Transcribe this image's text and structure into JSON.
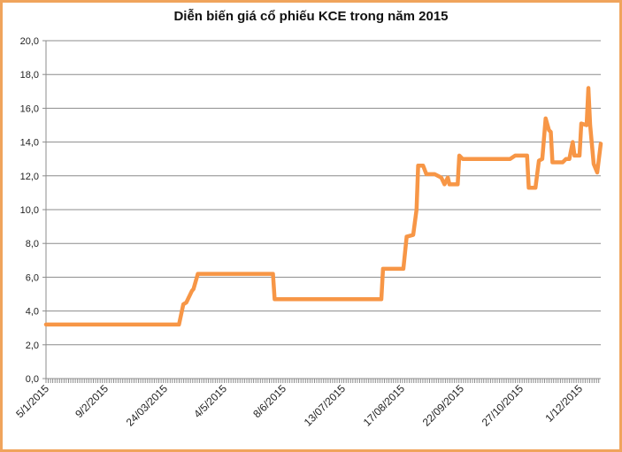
{
  "chart_data": {
    "type": "line",
    "title": "Diễn biến giá cổ phiếu KCE trong năm 2015",
    "xlabel": "",
    "ylabel": "",
    "ylim": [
      0,
      20
    ],
    "yticks": [
      "0,0",
      "2,0",
      "4,0",
      "6,0",
      "8,0",
      "10,0",
      "12,0",
      "14,0",
      "16,0",
      "18,0",
      "20,0"
    ],
    "xtick_labels": [
      "5/1/2015",
      "9/2/2015",
      "24/03/2015",
      "4/5/2015",
      "8/6/2015",
      "13/07/2015",
      "17/08/2015",
      "22/09/2015",
      "27/10/2015",
      "1/12/2015"
    ],
    "xtick_dates": [
      "2015-01-05",
      "2015-02-09",
      "2015-03-24",
      "2015-05-04",
      "2015-06-08",
      "2015-07-13",
      "2015-08-17",
      "2015-09-22",
      "2015-10-27",
      "2015-12-01"
    ],
    "x_end": "2015-12-13",
    "grid": true,
    "legend": "none",
    "line_color": "#F79646",
    "series": [
      {
        "points": [
          [
            "2015-01-05",
            3.2
          ],
          [
            "2015-04-03",
            3.2
          ],
          [
            "2015-04-06",
            4.4
          ],
          [
            "2015-04-08",
            4.5
          ],
          [
            "2015-04-12",
            5.2
          ],
          [
            "2015-04-13",
            5.3
          ],
          [
            "2015-04-16",
            6.2
          ],
          [
            "2015-06-02",
            6.2
          ],
          [
            "2015-06-03",
            4.7
          ],
          [
            "2015-08-05",
            4.7
          ],
          [
            "2015-08-06",
            6.5
          ],
          [
            "2015-08-18",
            6.5
          ],
          [
            "2015-08-20",
            8.4
          ],
          [
            "2015-08-24",
            8.5
          ],
          [
            "2015-08-26",
            10.0
          ],
          [
            "2015-08-27",
            12.6
          ],
          [
            "2015-08-30",
            12.6
          ],
          [
            "2015-09-01",
            12.1
          ],
          [
            "2015-09-06",
            12.1
          ],
          [
            "2015-09-10",
            11.9
          ],
          [
            "2015-09-12",
            11.5
          ],
          [
            "2015-09-14",
            11.9
          ],
          [
            "2015-09-15",
            11.5
          ],
          [
            "2015-09-20",
            11.5
          ],
          [
            "2015-09-21",
            13.2
          ],
          [
            "2015-09-23",
            13.0
          ],
          [
            "2015-10-21",
            13.0
          ],
          [
            "2015-10-24",
            13.2
          ],
          [
            "2015-10-31",
            13.2
          ],
          [
            "2015-11-01",
            11.3
          ],
          [
            "2015-11-05",
            11.3
          ],
          [
            "2015-11-07",
            12.9
          ],
          [
            "2015-11-09",
            13.0
          ],
          [
            "2015-11-11",
            15.4
          ],
          [
            "2015-11-13",
            14.7
          ],
          [
            "2015-11-14",
            14.6
          ],
          [
            "2015-11-15",
            12.8
          ],
          [
            "2015-11-21",
            12.8
          ],
          [
            "2015-11-23",
            13.0
          ],
          [
            "2015-11-25",
            13.0
          ],
          [
            "2015-11-27",
            14.0
          ],
          [
            "2015-11-28",
            13.2
          ],
          [
            "2015-12-01",
            13.2
          ],
          [
            "2015-12-02",
            15.1
          ],
          [
            "2015-12-05",
            15.0
          ],
          [
            "2015-12-06",
            17.2
          ],
          [
            "2015-12-07",
            15.0
          ],
          [
            "2015-12-09",
            12.7
          ],
          [
            "2015-12-11",
            12.2
          ],
          [
            "2015-12-13",
            13.9
          ]
        ]
      }
    ]
  }
}
